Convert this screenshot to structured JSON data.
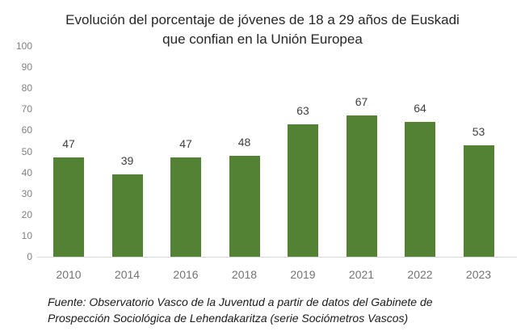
{
  "chart_data": {
    "type": "bar",
    "title": "Evolución del porcentaje de jóvenes de 18 a 29 años de Euskadi que confian en la Unión Europea",
    "title_lines": [
      "Evolución del porcentaje de jóvenes de 18 a 29 años de Euskadi",
      "que confian en la Unión Europea"
    ],
    "categories": [
      "2010",
      "2014",
      "2016",
      "2018",
      "2019",
      "2021",
      "2022",
      "2023"
    ],
    "values": [
      47,
      39,
      47,
      48,
      63,
      67,
      64,
      53
    ],
    "xlabel": "",
    "ylabel": "",
    "ylim": [
      0,
      100
    ],
    "yticks": [
      0,
      10,
      20,
      30,
      40,
      50,
      60,
      70,
      80,
      90,
      100
    ],
    "grid": false,
    "legend": "none",
    "bar_color": "#548235",
    "axis_line_color": "#d9d9d9",
    "y_axis_label_color": "#808080",
    "x_axis_label_color": "#737373",
    "value_label_color": "#404040",
    "source": "Fuente: Observatorio Vasco de la Juventud a partir de datos del Gabinete de Prospección Sociológica de Lehendakaritza (serie Sociómetros Vascos)",
    "source_lines": [
      "Fuente: Observatorio Vasco de la Juventud a partir de datos del Gabinete de",
      "Prospección Sociológica de Lehendakaritza (serie Sociómetros Vascos)"
    ]
  }
}
